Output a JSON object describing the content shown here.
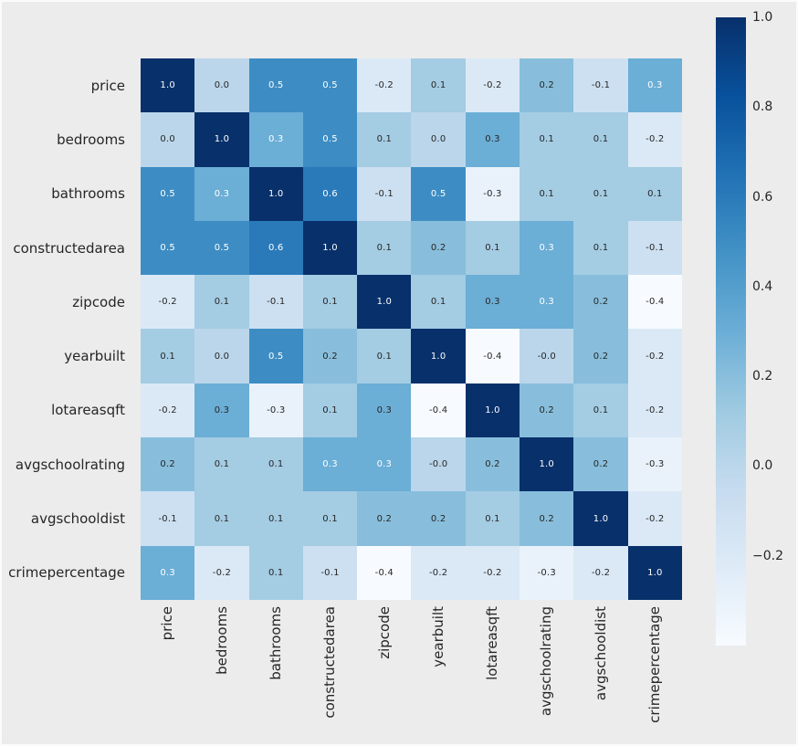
{
  "figure": {
    "background": "#ececec",
    "edge_color": "#fbfbfb",
    "text_color": "#262626"
  },
  "chart_data": {
    "type": "heatmap",
    "title": "",
    "description": "Correlation matrix heatmap of housing dataset features",
    "colormap": "Blues",
    "colormap_anchors": [
      "#f7fbff",
      "#deebf7",
      "#c6dbef",
      "#9ecae1",
      "#6baed6",
      "#4292c6",
      "#2171b5",
      "#08519c",
      "#08306b"
    ],
    "vmin": -0.4,
    "vmax": 1.0,
    "grid": false,
    "legend_position": "right-colorbar",
    "labels": [
      "price",
      "bedrooms",
      "bathrooms",
      "constructedarea",
      "zipcode",
      "yearbuilt",
      "lotareasqft",
      "avgschoolrating",
      "avgschooldist",
      "crimepercentage"
    ],
    "matrix": [
      [
        "1.0",
        "0.0",
        "0.5",
        "0.5",
        "-0.2",
        "0.1",
        "-0.2",
        "0.2",
        "-0.1",
        "0.3"
      ],
      [
        "0.0",
        "1.0",
        "0.3",
        "0.5",
        "0.1",
        "0.0",
        "0.3",
        "0.1",
        "0.1",
        "-0.2"
      ],
      [
        "0.5",
        "0.3",
        "1.0",
        "0.6",
        "-0.1",
        "0.5",
        "-0.3",
        "0.1",
        "0.1",
        "0.1"
      ],
      [
        "0.5",
        "0.5",
        "0.6",
        "1.0",
        "0.1",
        "0.2",
        "0.1",
        "0.3",
        "0.1",
        "-0.1"
      ],
      [
        "-0.2",
        "0.1",
        "-0.1",
        "0.1",
        "1.0",
        "0.1",
        "0.3",
        "0.3",
        "0.2",
        "-0.4"
      ],
      [
        "0.1",
        "0.0",
        "0.5",
        "0.2",
        "0.1",
        "1.0",
        "-0.4",
        "-0.0",
        "0.2",
        "-0.2"
      ],
      [
        "-0.2",
        "0.3",
        "-0.3",
        "0.1",
        "0.3",
        "-0.4",
        "1.0",
        "0.2",
        "0.1",
        "-0.2"
      ],
      [
        "0.2",
        "0.1",
        "0.1",
        "0.3",
        "0.3",
        "-0.0",
        "0.2",
        "1.0",
        "0.2",
        "-0.3"
      ],
      [
        "-0.1",
        "0.1",
        "0.1",
        "0.1",
        "0.2",
        "0.2",
        "0.1",
        "0.2",
        "1.0",
        "-0.2"
      ],
      [
        "0.3",
        "-0.2",
        "0.1",
        "-0.1",
        "-0.4",
        "-0.2",
        "-0.2",
        "-0.3",
        "-0.2",
        "1.0"
      ]
    ],
    "annotation": {
      "white_text": "#ffffff",
      "dark_text": "#262626",
      "dark_text_cells": [
        [
          1,
          6
        ],
        [
          6,
          1
        ],
        [
          4,
          6
        ],
        [
          6,
          4
        ]
      ]
    },
    "colorbar": {
      "ticks": [
        {
          "label": "1.0",
          "value": 1.0
        },
        {
          "label": "0.8",
          "value": 0.8
        },
        {
          "label": "0.6",
          "value": 0.6
        },
        {
          "label": "0.4",
          "value": 0.4
        },
        {
          "label": "0.2",
          "value": 0.2
        },
        {
          "label": "0.0",
          "value": 0.0
        },
        {
          "label": "−0.2",
          "value": -0.2
        }
      ]
    }
  }
}
